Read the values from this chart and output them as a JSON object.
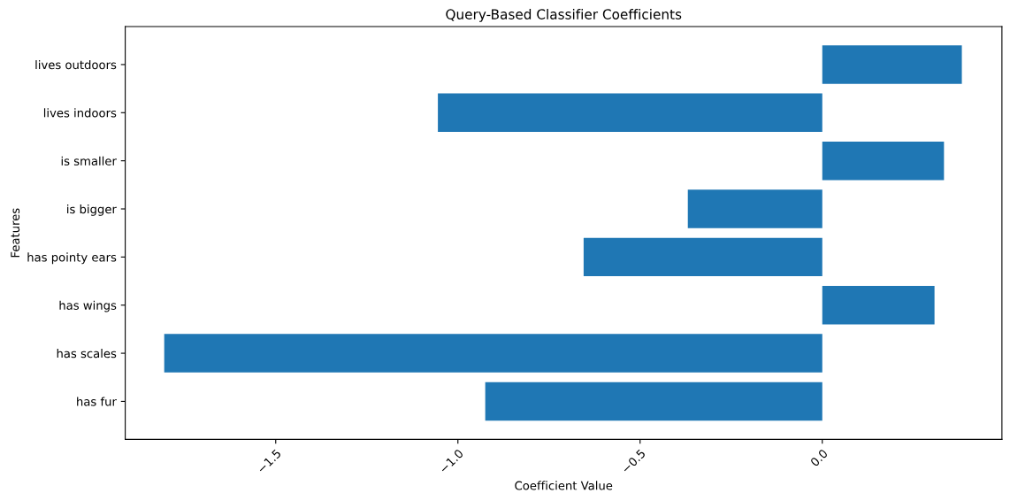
{
  "chart_data": {
    "type": "bar",
    "orientation": "horizontal",
    "title": "Query-Based Classifier Coefficients",
    "xlabel": "Coefficient Value",
    "ylabel": "Features",
    "categories": [
      "lives outdoors",
      "lives indoors",
      "is smaller",
      "is bigger",
      "has pointy ears",
      "has wings",
      "has scales",
      "has fur"
    ],
    "values": [
      0.383,
      -1.055,
      0.334,
      -0.369,
      -0.655,
      0.308,
      -1.806,
      -0.925
    ],
    "color": "#1f77b4",
    "xlim": [
      -1.913,
      0.493
    ],
    "xticks": [
      {
        "value": -1.5,
        "label": "−1.5"
      },
      {
        "value": -1.0,
        "label": "−1.0"
      },
      {
        "value": -0.5,
        "label": "−0.5"
      },
      {
        "value": 0.0,
        "label": "0.0"
      }
    ],
    "grid": false,
    "legend": false
  }
}
